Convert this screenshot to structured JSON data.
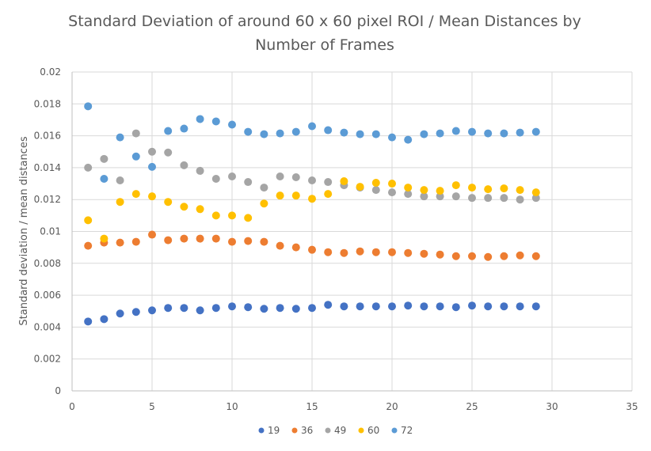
{
  "chart_data": {
    "type": "scatter",
    "title_lines": [
      "Standard Deviation of around 60 x 60 pixel ROI / Mean Distances by",
      "Number of Frames"
    ],
    "xlabel": "",
    "ylabel": "Standard deviation / mean distances",
    "xlim": [
      0,
      35
    ],
    "ylim": [
      0,
      0.02
    ],
    "x_ticks": [
      0,
      5,
      10,
      15,
      20,
      25,
      30,
      35
    ],
    "x_tick_labels": [
      "0",
      "5",
      "10",
      "15",
      "20",
      "25",
      "30",
      "35"
    ],
    "y_ticks": [
      0,
      0.002,
      0.004,
      0.006,
      0.008,
      0.01,
      0.012,
      0.014,
      0.016,
      0.018,
      0.02
    ],
    "y_tick_labels": [
      "0",
      "0.002",
      "0.004",
      "0.006",
      "0.008",
      "0.01",
      "0.012",
      "0.014",
      "0.016",
      "0.018",
      "0.02"
    ],
    "grid": "horizontal",
    "legend_position": "bottom",
    "x": [
      1,
      2,
      3,
      4,
      5,
      6,
      7,
      8,
      9,
      10,
      11,
      12,
      13,
      14,
      15,
      16,
      17,
      18,
      19,
      20,
      21,
      22,
      23,
      24,
      25,
      26,
      27,
      28,
      29
    ],
    "series": [
      {
        "name": "19",
        "color": "#4472c4",
        "values": [
          0.00435,
          0.0045,
          0.00485,
          0.00495,
          0.00505,
          0.0052,
          0.0052,
          0.00505,
          0.0052,
          0.0053,
          0.00525,
          0.00515,
          0.0052,
          0.00515,
          0.0052,
          0.0054,
          0.0053,
          0.0053,
          0.0053,
          0.0053,
          0.00535,
          0.0053,
          0.0053,
          0.00525,
          0.00535,
          0.0053,
          0.0053,
          0.0053,
          0.0053
        ]
      },
      {
        "name": "36",
        "color": "#ed7d31",
        "values": [
          0.0091,
          0.0093,
          0.0093,
          0.00935,
          0.0098,
          0.00945,
          0.00955,
          0.00955,
          0.00955,
          0.00935,
          0.0094,
          0.00935,
          0.0091,
          0.009,
          0.00885,
          0.0087,
          0.00865,
          0.00875,
          0.0087,
          0.0087,
          0.00865,
          0.0086,
          0.00855,
          0.00845,
          0.00845,
          0.0084,
          0.00845,
          0.0085,
          0.00845
        ]
      },
      {
        "name": "49",
        "color": "#a5a5a5",
        "values": [
          0.014,
          0.01455,
          0.0132,
          0.01615,
          0.015,
          0.01495,
          0.01415,
          0.0138,
          0.0133,
          0.01345,
          0.0131,
          0.01275,
          0.01345,
          0.0134,
          0.0132,
          0.0131,
          0.0129,
          0.01275,
          0.0126,
          0.01245,
          0.01235,
          0.0122,
          0.0122,
          0.0122,
          0.0121,
          0.0121,
          0.0121,
          0.012,
          0.0121
        ]
      },
      {
        "name": "60",
        "color": "#ffc000",
        "values": [
          0.0107,
          0.00955,
          0.01185,
          0.01235,
          0.0122,
          0.01185,
          0.01155,
          0.0114,
          0.011,
          0.011,
          0.01085,
          0.01175,
          0.01225,
          0.01225,
          0.01205,
          0.01235,
          0.01315,
          0.0128,
          0.01305,
          0.013,
          0.01275,
          0.0126,
          0.01255,
          0.0129,
          0.01275,
          0.01265,
          0.0127,
          0.0126,
          0.01245
        ]
      },
      {
        "name": "72",
        "color": "#5b9bd5",
        "values": [
          0.01785,
          0.0133,
          0.0159,
          0.0147,
          0.01405,
          0.0163,
          0.01645,
          0.01705,
          0.0169,
          0.0167,
          0.01625,
          0.0161,
          0.01615,
          0.01625,
          0.0166,
          0.01635,
          0.0162,
          0.0161,
          0.0161,
          0.0159,
          0.01575,
          0.0161,
          0.01615,
          0.0163,
          0.01625,
          0.01615,
          0.01615,
          0.0162,
          0.01625
        ]
      }
    ]
  }
}
